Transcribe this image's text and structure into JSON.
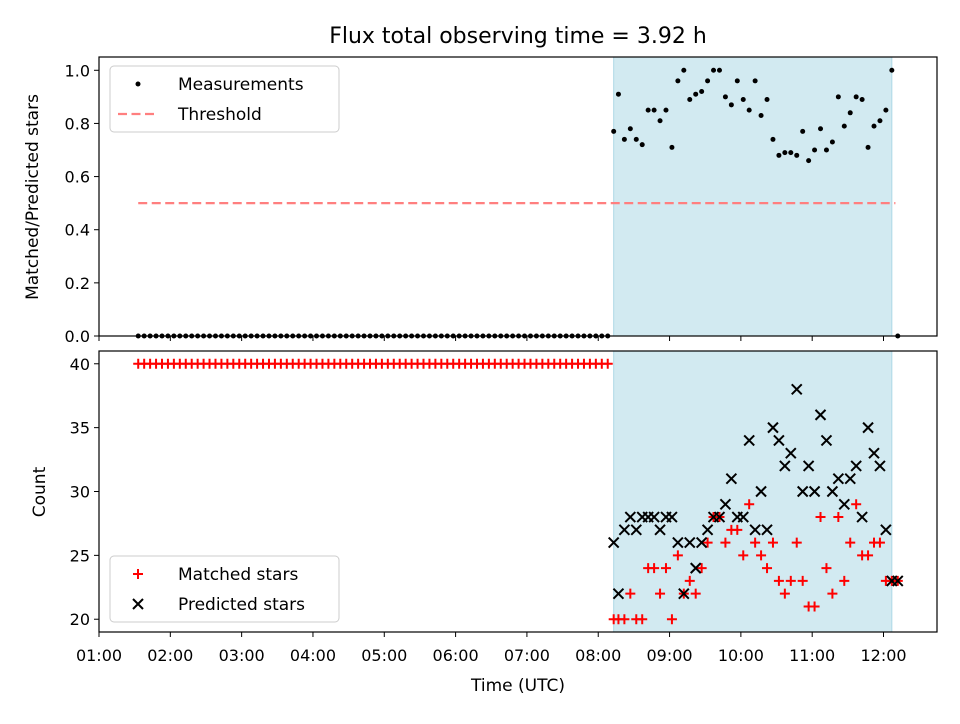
{
  "title": "Flux total observing time = 3.92 h",
  "colors": {
    "band": "#add8e6",
    "threshold": "#ff7f7f",
    "matched": "#ff0000",
    "predicted": "#000000",
    "measure": "#000000"
  },
  "chart_data": [
    {
      "type": "scatter",
      "ylabel": "Matched/Predicted stars",
      "ylim": [
        0,
        1.05
      ],
      "yticks": [
        "0.0",
        "0.2",
        "0.4",
        "0.6",
        "0.8",
        "1.0"
      ],
      "xlim": [
        1.0,
        12.75
      ],
      "shaded_range": [
        "08:13",
        "12:07"
      ],
      "legend": {
        "position": "top-left",
        "entries": [
          "Measurements",
          "Threshold"
        ]
      },
      "series": [
        {
          "name": "Threshold",
          "kind": "dashed-line",
          "x": [
            "01:33",
            "12:10"
          ],
          "values": [
            0.5,
            0.5
          ]
        },
        {
          "name": "Measurements",
          "kind": "dots",
          "pre_start": "01:33",
          "pre_end": "08:09",
          "pre_step_min": 5,
          "pre_value": 0.0,
          "x": [
            "08:13",
            "08:17",
            "08:22",
            "08:27",
            "08:32",
            "08:37",
            "08:42",
            "08:47",
            "08:52",
            "08:57",
            "09:02",
            "09:07",
            "09:12",
            "09:17",
            "09:22",
            "09:27",
            "09:32",
            "09:37",
            "09:42",
            "09:47",
            "09:52",
            "09:57",
            "10:02",
            "10:07",
            "10:12",
            "10:17",
            "10:22",
            "10:27",
            "10:32",
            "10:37",
            "10:42",
            "10:47",
            "10:52",
            "10:57",
            "11:02",
            "11:07",
            "11:12",
            "11:17",
            "11:22",
            "11:27",
            "11:32",
            "11:37",
            "11:42",
            "11:47",
            "11:52",
            "11:57",
            "12:02",
            "12:07",
            "12:12"
          ],
          "values": [
            0.77,
            0.91,
            0.74,
            0.78,
            0.74,
            0.72,
            0.85,
            0.85,
            0.81,
            0.85,
            0.71,
            0.96,
            1.0,
            0.89,
            0.91,
            0.92,
            0.96,
            1.0,
            1.0,
            0.9,
            0.87,
            0.96,
            0.89,
            0.85,
            0.96,
            0.83,
            0.89,
            0.74,
            0.68,
            0.69,
            0.69,
            0.68,
            0.77,
            0.66,
            0.7,
            0.78,
            0.7,
            0.73,
            0.9,
            0.79,
            0.84,
            0.9,
            0.89,
            0.71,
            0.79,
            0.81,
            0.85,
            1.0,
            0.0
          ]
        }
      ]
    },
    {
      "type": "scatter",
      "ylabel": "Count",
      "xlabel": "Time (UTC)",
      "ylim": [
        19,
        41
      ],
      "yticks": [
        "20",
        "25",
        "30",
        "35",
        "40"
      ],
      "xlim": [
        1.0,
        12.75
      ],
      "xticks": [
        "01:00",
        "02:00",
        "03:00",
        "04:00",
        "05:00",
        "06:00",
        "07:00",
        "08:00",
        "09:00",
        "10:00",
        "11:00",
        "12:00"
      ],
      "shaded_range": [
        "08:13",
        "12:07"
      ],
      "legend": {
        "position": "bottom-left",
        "entries": [
          "Matched stars",
          "Predicted stars"
        ]
      },
      "series": [
        {
          "name": "Matched stars",
          "marker": "+",
          "pre_start": "01:33",
          "pre_end": "08:09",
          "pre_step_min": 5,
          "pre_value": 40,
          "x": [
            "08:13",
            "08:17",
            "08:22",
            "08:27",
            "08:32",
            "08:37",
            "08:42",
            "08:47",
            "08:52",
            "08:57",
            "09:02",
            "09:07",
            "09:12",
            "09:17",
            "09:22",
            "09:27",
            "09:32",
            "09:37",
            "09:42",
            "09:47",
            "09:52",
            "09:57",
            "10:02",
            "10:07",
            "10:12",
            "10:17",
            "10:22",
            "10:27",
            "10:32",
            "10:37",
            "10:42",
            "10:47",
            "10:52",
            "10:57",
            "11:02",
            "11:07",
            "11:12",
            "11:17",
            "11:22",
            "11:27",
            "11:32",
            "11:37",
            "11:42",
            "11:47",
            "11:52",
            "11:57",
            "12:02",
            "12:07",
            "12:12"
          ],
          "values": [
            20,
            20,
            20,
            22,
            20,
            20,
            24,
            24,
            22,
            24,
            20,
            25,
            22,
            23,
            22,
            24,
            26,
            28,
            28,
            26,
            27,
            27,
            25,
            29,
            26,
            25,
            24,
            26,
            23,
            22,
            23,
            26,
            23,
            21,
            21,
            28,
            24,
            22,
            28,
            23,
            26,
            29,
            25,
            25,
            26,
            26,
            23,
            23,
            23
          ]
        },
        {
          "name": "Predicted stars",
          "marker": "x",
          "x": [
            "08:13",
            "08:17",
            "08:22",
            "08:27",
            "08:32",
            "08:37",
            "08:42",
            "08:47",
            "08:52",
            "08:57",
            "09:02",
            "09:07",
            "09:12",
            "09:17",
            "09:22",
            "09:27",
            "09:32",
            "09:37",
            "09:42",
            "09:47",
            "09:52",
            "09:57",
            "10:02",
            "10:07",
            "10:12",
            "10:17",
            "10:22",
            "10:27",
            "10:32",
            "10:37",
            "10:42",
            "10:47",
            "10:52",
            "10:57",
            "11:02",
            "11:07",
            "11:12",
            "11:17",
            "11:22",
            "11:27",
            "11:32",
            "11:37",
            "11:42",
            "11:47",
            "11:52",
            "11:57",
            "12:02",
            "12:07",
            "12:12"
          ],
          "values": [
            26,
            22,
            27,
            28,
            27,
            28,
            28,
            28,
            27,
            28,
            28,
            26,
            22,
            26,
            24,
            26,
            27,
            28,
            28,
            29,
            31,
            28,
            28,
            34,
            27,
            30,
            27,
            35,
            34,
            32,
            33,
            38,
            30,
            32,
            30,
            36,
            34,
            30,
            31,
            29,
            31,
            32,
            28,
            35,
            33,
            32,
            27,
            23,
            23
          ]
        }
      ]
    }
  ]
}
